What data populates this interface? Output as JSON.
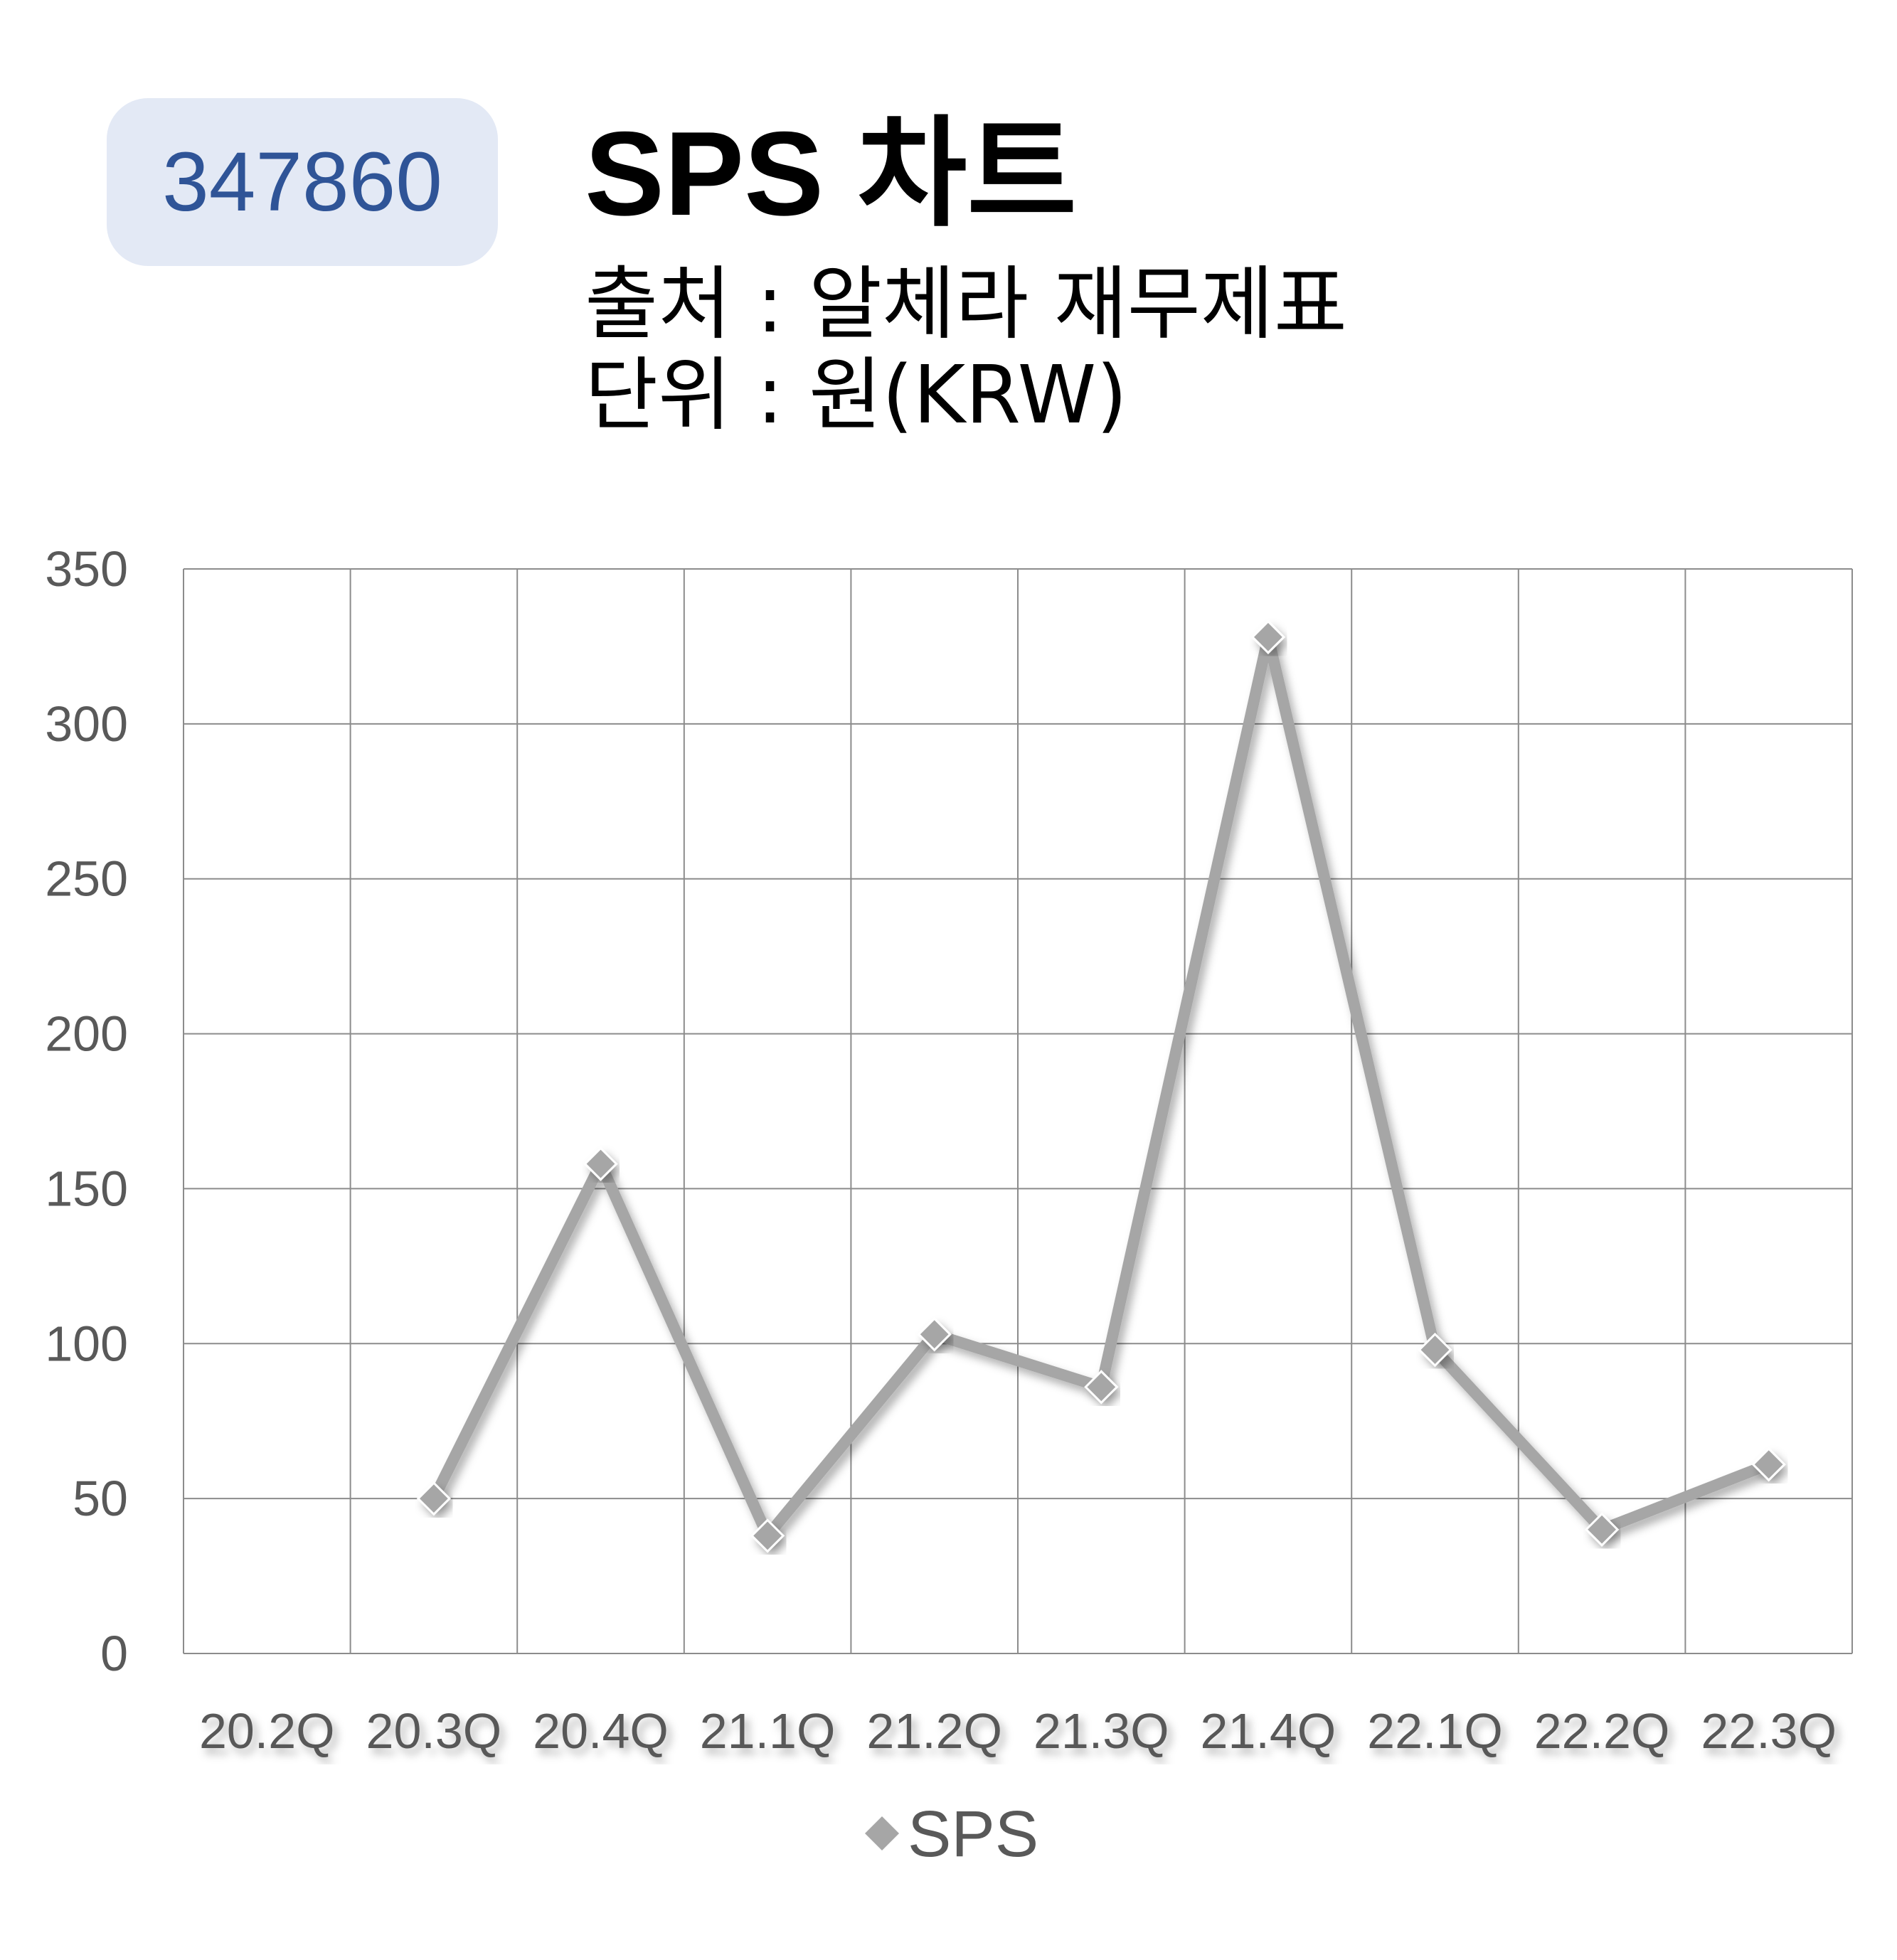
{
  "header": {
    "code": "347860",
    "title": "SPS 차트",
    "source": "출처 : 알체라 재무제표",
    "unit": "단위 : 원(KRW)"
  },
  "chart_data": {
    "type": "line",
    "categories": [
      "20.2Q",
      "20.3Q",
      "20.4Q",
      "21.1Q",
      "21.2Q",
      "21.3Q",
      "21.4Q",
      "22.1Q",
      "22.2Q",
      "22.3Q"
    ],
    "series": [
      {
        "name": "SPS",
        "values": [
          null,
          50,
          158,
          38,
          103,
          86,
          328,
          98,
          40,
          61
        ],
        "color": "#a6a6a6"
      }
    ],
    "yticks": [
      "0",
      "50",
      "100",
      "150",
      "200",
      "250",
      "300",
      "350"
    ],
    "ylim": [
      0,
      350
    ],
    "grid": true,
    "legend": "bottom",
    "colors": {
      "grid": "#8c8c8c",
      "tick_text": "#595959",
      "line": "#a6a6a6"
    }
  }
}
